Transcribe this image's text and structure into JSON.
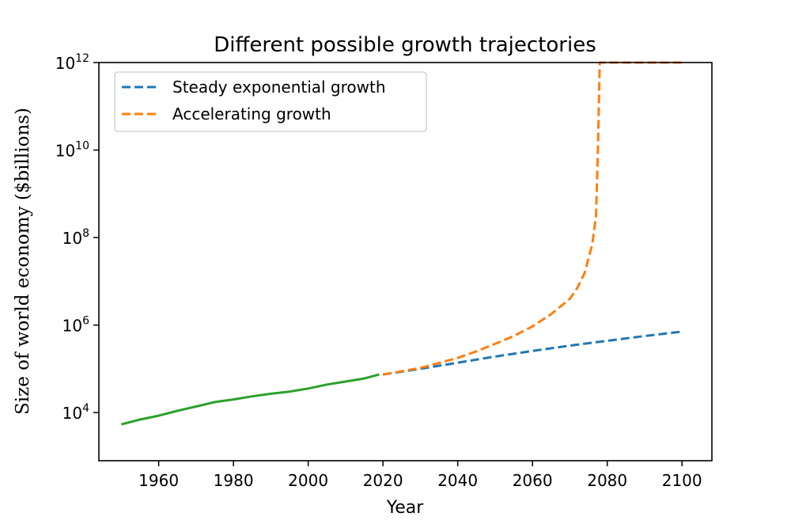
{
  "chart_data": {
    "type": "line",
    "title": "Different possible growth trajectories",
    "xlabel": "Year",
    "ylabel": "Size of world economy ($billions)",
    "xlim": [
      1944,
      2108
    ],
    "ylim_log10": [
      2.9,
      12
    ],
    "y_scale": "log",
    "grid": false,
    "legend_position": "top-left",
    "x_ticks": [
      1960,
      1980,
      2000,
      2020,
      2040,
      2060,
      2080,
      2100
    ],
    "y_ticks": [
      {
        "base": "10",
        "exp": "4",
        "log10": 4
      },
      {
        "base": "10",
        "exp": "6",
        "log10": 6
      },
      {
        "base": "10",
        "exp": "8",
        "log10": 8
      },
      {
        "base": "10",
        "exp": "10",
        "log10": 10
      },
      {
        "base": "10",
        "exp": "12",
        "log10": 12
      }
    ],
    "series": [
      {
        "name": "Steady exponential growth",
        "color": "#1f77b4",
        "dashed": true,
        "in_legend": true,
        "x": [
          2020,
          2030,
          2040,
          2050,
          2060,
          2070,
          2080,
          2090,
          2100
        ],
        "log10_y": [
          4.87,
          5.0,
          5.14,
          5.28,
          5.41,
          5.53,
          5.64,
          5.75,
          5.85
        ]
      },
      {
        "name": "Accelerating growth",
        "color": "#ff7f0e",
        "dashed": true,
        "in_legend": true,
        "x": [
          2020,
          2030,
          2040,
          2045,
          2050,
          2055,
          2060,
          2065,
          2070,
          2072,
          2074,
          2076,
          2077,
          2077.5,
          2078,
          2080,
          2090,
          2100
        ],
        "log10_y": [
          4.87,
          5.02,
          5.25,
          5.4,
          5.57,
          5.75,
          5.97,
          6.25,
          6.6,
          6.85,
          7.2,
          7.85,
          8.5,
          10.0,
          12.0,
          12.0,
          12.0,
          12.0
        ]
      },
      {
        "name": "",
        "color": "#2ca02c",
        "dashed": false,
        "in_legend": false,
        "x": [
          1950,
          1955,
          1960,
          1965,
          1970,
          1975,
          1980,
          1985,
          1990,
          1995,
          2000,
          2005,
          2010,
          2015,
          2019
        ],
        "log10_y": [
          3.73,
          3.84,
          3.93,
          4.04,
          4.14,
          4.24,
          4.3,
          4.37,
          4.43,
          4.48,
          4.55,
          4.64,
          4.71,
          4.78,
          4.87
        ]
      }
    ]
  }
}
